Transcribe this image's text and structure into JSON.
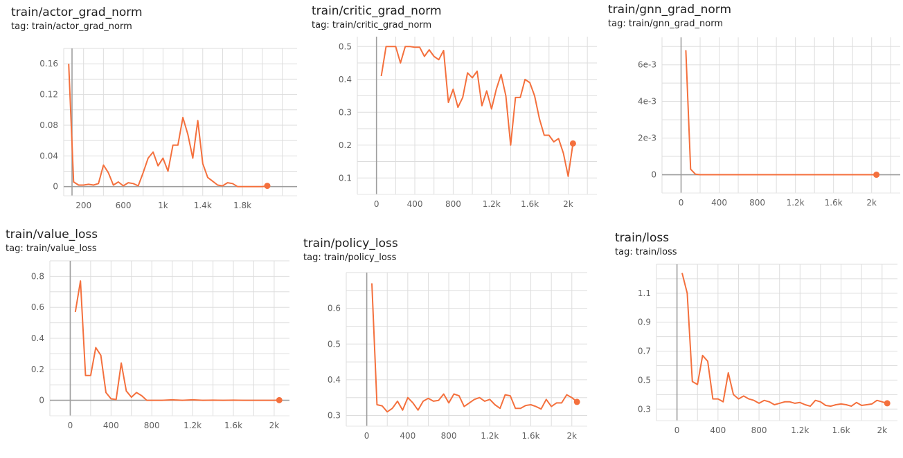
{
  "theme": {
    "series_color": "#f4703d",
    "grid_color": "#dddddd",
    "axis_color": "#9e9e9e"
  },
  "chart_data": [
    {
      "id": "actor",
      "type": "line",
      "title": "train/actor_grad_norm",
      "tag": "tag: train/actor_grad_norm",
      "xlim": [
        0,
        2350
      ],
      "ylim": [
        -0.012,
        0.18
      ],
      "xticks": [
        200,
        600,
        1000,
        1400,
        1800
      ],
      "xtick_labels": [
        "200",
        "600",
        "1k",
        "1.4k",
        "1.8k"
      ],
      "yticks": [
        0,
        0.04,
        0.08,
        0.12,
        0.16
      ],
      "ytick_labels": [
        "0",
        "0.04",
        "0.08",
        "0.12",
        "0.16"
      ],
      "grid": true,
      "series": [
        {
          "x": [
            50,
            100,
            150,
            200,
            250,
            300,
            350,
            400,
            450,
            500,
            550,
            600,
            650,
            700,
            750,
            800,
            850,
            900,
            950,
            1000,
            1050,
            1100,
            1150,
            1200,
            1250,
            1300,
            1350,
            1400,
            1450,
            1500,
            1550,
            1600,
            1650,
            1700,
            1750,
            1800,
            1850,
            1900,
            1950,
            2000,
            2050
          ],
          "y": [
            0.16,
            0.006,
            0.002,
            0.002,
            0.003,
            0.002,
            0.004,
            0.028,
            0.018,
            0.002,
            0.006,
            0.001,
            0.005,
            0.004,
            0.001,
            0.018,
            0.037,
            0.045,
            0.027,
            0.037,
            0.02,
            0.054,
            0.054,
            0.09,
            0.068,
            0.037,
            0.086,
            0.03,
            0.012,
            0.007,
            0.002,
            0.001,
            0.005,
            0.004,
            0.0,
            0.0,
            0.0,
            0.0,
            0.0,
            0.0,
            0.001
          ]
        }
      ]
    },
    {
      "id": "critic",
      "type": "line",
      "title": "train/critic_grad_norm",
      "tag": "tag: train/critic_grad_norm",
      "xlim": [
        -200,
        2300
      ],
      "ylim": [
        0.05,
        0.53
      ],
      "xticks": [
        0,
        400,
        800,
        1200,
        1600,
        2000
      ],
      "xtick_labels": [
        "0",
        "400",
        "800",
        "1.2k",
        "1.6k",
        "2k"
      ],
      "yticks": [
        0.1,
        0.2,
        0.3,
        0.4,
        0.5
      ],
      "ytick_labels": [
        "0.1",
        "0.2",
        "0.3",
        "0.4",
        "0.5"
      ],
      "grid": true,
      "series": [
        {
          "x": [
            50,
            100,
            150,
            200,
            250,
            300,
            350,
            400,
            450,
            500,
            550,
            600,
            650,
            700,
            750,
            800,
            850,
            900,
            950,
            1000,
            1050,
            1100,
            1150,
            1200,
            1250,
            1300,
            1350,
            1400,
            1450,
            1500,
            1550,
            1600,
            1650,
            1700,
            1750,
            1800,
            1850,
            1900,
            1950,
            2000,
            2050
          ],
          "y": [
            0.41,
            0.5,
            0.5,
            0.5,
            0.45,
            0.5,
            0.5,
            0.498,
            0.498,
            0.47,
            0.49,
            0.47,
            0.46,
            0.488,
            0.33,
            0.37,
            0.315,
            0.345,
            0.42,
            0.405,
            0.425,
            0.32,
            0.365,
            0.31,
            0.37,
            0.415,
            0.35,
            0.2,
            0.345,
            0.345,
            0.4,
            0.39,
            0.35,
            0.28,
            0.23,
            0.23,
            0.21,
            0.22,
            0.175,
            0.105,
            0.205
          ]
        }
      ]
    },
    {
      "id": "gnn",
      "type": "line",
      "title": "train/gnn_grad_norm",
      "tag": "tag: train/gnn_grad_norm",
      "xlim": [
        -200,
        2300
      ],
      "ylim": [
        -0.001,
        0.0075
      ],
      "xticks": [
        0,
        400,
        800,
        1200,
        1600,
        2000
      ],
      "xtick_labels": [
        "0",
        "400",
        "800",
        "1.2k",
        "1.6k",
        "2k"
      ],
      "yticks": [
        0,
        0.002,
        0.004,
        0.006
      ],
      "ytick_labels": [
        "0",
        "2e-3",
        "4e-3",
        "6e-3"
      ],
      "grid": true,
      "series": [
        {
          "x": [
            50,
            100,
            150,
            200,
            300,
            400,
            500,
            600,
            700,
            800,
            900,
            1000,
            1100,
            1200,
            1300,
            1400,
            1500,
            1600,
            1700,
            1800,
            1900,
            2000,
            2050
          ],
          "y": [
            0.0068,
            0.0003,
            3e-05,
            0.0,
            0.0,
            0.0,
            0.0,
            0.0,
            0.0,
            0.0,
            0.0,
            0.0,
            0.0,
            0.0,
            0.0,
            0.0,
            0.0,
            0.0,
            0.0,
            0.0,
            0.0,
            0.0,
            0.0
          ]
        }
      ]
    },
    {
      "id": "value",
      "type": "line",
      "title": "train/value_loss",
      "tag": "tag: train/value_loss",
      "xlim": [
        -200,
        2150
      ],
      "ylim": [
        -0.1,
        0.9
      ],
      "xticks": [
        0,
        400,
        800,
        1200,
        1600,
        2000
      ],
      "xtick_labels": [
        "0",
        "400",
        "800",
        "1.2k",
        "1.6k",
        "2k"
      ],
      "yticks": [
        0,
        0.2,
        0.4,
        0.6,
        0.8
      ],
      "ytick_labels": [
        "0",
        "0.2",
        "0.4",
        "0.6",
        "0.8"
      ],
      "grid": true,
      "series": [
        {
          "x": [
            50,
            100,
            150,
            200,
            250,
            300,
            350,
            400,
            450,
            500,
            550,
            600,
            650,
            700,
            750,
            800,
            850,
            900,
            950,
            1000,
            1100,
            1200,
            1300,
            1400,
            1500,
            1600,
            1700,
            1800,
            1900,
            2000,
            2050
          ],
          "y": [
            0.57,
            0.77,
            0.16,
            0.16,
            0.34,
            0.29,
            0.05,
            0.01,
            0.005,
            0.24,
            0.06,
            0.02,
            0.05,
            0.03,
            0.0,
            0.0,
            0.0,
            0.0,
            0.002,
            0.003,
            0.0,
            0.003,
            0.0,
            0.001,
            0.0,
            0.001,
            0.0,
            0.0,
            0.0,
            0.0,
            0.001
          ]
        }
      ]
    },
    {
      "id": "policy",
      "type": "line",
      "title": "train/policy_loss",
      "tag": "tag: train/policy_loss",
      "xlim": [
        -200,
        2150
      ],
      "ylim": [
        0.27,
        0.7
      ],
      "xticks": [
        0,
        400,
        800,
        1200,
        1600,
        2000
      ],
      "xtick_labels": [
        "0",
        "400",
        "800",
        "1.2k",
        "1.6k",
        "2k"
      ],
      "yticks": [
        0.3,
        0.4,
        0.5,
        0.6
      ],
      "ytick_labels": [
        "0.3",
        "0.4",
        "0.5",
        "0.6"
      ],
      "grid": true,
      "series": [
        {
          "x": [
            50,
            100,
            150,
            200,
            250,
            300,
            350,
            400,
            450,
            500,
            550,
            600,
            650,
            700,
            750,
            800,
            850,
            900,
            950,
            1000,
            1050,
            1100,
            1150,
            1200,
            1250,
            1300,
            1350,
            1400,
            1450,
            1500,
            1550,
            1600,
            1650,
            1700,
            1750,
            1800,
            1850,
            1900,
            1950,
            2000,
            2050
          ],
          "y": [
            0.67,
            0.33,
            0.327,
            0.31,
            0.32,
            0.34,
            0.315,
            0.35,
            0.335,
            0.315,
            0.34,
            0.348,
            0.34,
            0.342,
            0.36,
            0.335,
            0.36,
            0.355,
            0.325,
            0.335,
            0.345,
            0.35,
            0.34,
            0.345,
            0.33,
            0.32,
            0.358,
            0.355,
            0.32,
            0.32,
            0.328,
            0.33,
            0.325,
            0.318,
            0.345,
            0.325,
            0.335,
            0.335,
            0.358,
            0.35,
            0.338
          ]
        }
      ]
    },
    {
      "id": "loss",
      "type": "line",
      "title": "train/loss",
      "tag": "tag: train/loss",
      "xlim": [
        -200,
        2150
      ],
      "ylim": [
        0.22,
        1.3
      ],
      "xticks": [
        0,
        400,
        800,
        1200,
        1600,
        2000
      ],
      "xtick_labels": [
        "0",
        "400",
        "800",
        "1.2k",
        "1.6k",
        "2k"
      ],
      "yticks": [
        0.3,
        0.5,
        0.7,
        0.9,
        1.1
      ],
      "ytick_labels": [
        "0.3",
        "0.5",
        "0.7",
        "0.9",
        "1.1"
      ],
      "grid": true,
      "series": [
        {
          "x": [
            50,
            100,
            150,
            200,
            250,
            300,
            350,
            400,
            450,
            500,
            550,
            600,
            650,
            700,
            750,
            800,
            850,
            900,
            950,
            1000,
            1050,
            1100,
            1150,
            1200,
            1250,
            1300,
            1350,
            1400,
            1450,
            1500,
            1550,
            1600,
            1650,
            1700,
            1750,
            1800,
            1850,
            1900,
            1950,
            2000,
            2050
          ],
          "y": [
            1.24,
            1.1,
            0.49,
            0.47,
            0.67,
            0.63,
            0.37,
            0.37,
            0.35,
            0.55,
            0.4,
            0.37,
            0.39,
            0.37,
            0.36,
            0.34,
            0.36,
            0.35,
            0.33,
            0.34,
            0.35,
            0.35,
            0.34,
            0.345,
            0.33,
            0.32,
            0.36,
            0.35,
            0.325,
            0.32,
            0.33,
            0.335,
            0.33,
            0.32,
            0.345,
            0.325,
            0.33,
            0.335,
            0.36,
            0.35,
            0.34
          ]
        }
      ]
    }
  ]
}
